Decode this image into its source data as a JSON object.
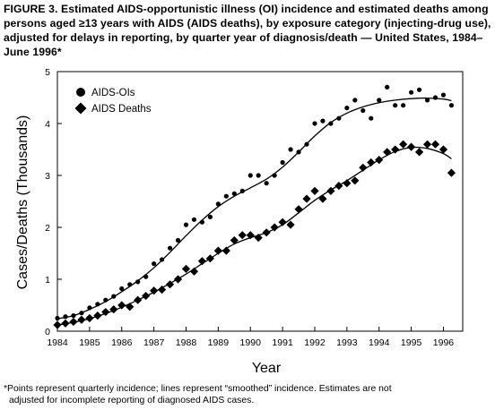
{
  "title": "FIGURE 3. Estimated AIDS-opportunistic illness (OI) incidence and estimated deaths among persons aged ≥13 years with AIDS (AIDS deaths), by exposure category (injecting-drug use), adjusted for delays in reporting, by quarter year of diagnosis/death — United States, 1984–June 1996*",
  "footnote": {
    "line1": "*Points represent quarterly incidence; lines represent “smoothed” incidence. Estimates are not",
    "line2": "adjusted for incomplete reporting of diagnosed AIDS cases."
  },
  "chart_data": {
    "type": "scatter",
    "xlabel": "Year",
    "ylabel": "Cases/Deaths (Thousands)",
    "xlim": [
      1984,
      1996.6
    ],
    "ylim": [
      0,
      5
    ],
    "x_ticks": [
      1984,
      1985,
      1986,
      1987,
      1988,
      1989,
      1990,
      1991,
      1992,
      1993,
      1994,
      1995,
      1996
    ],
    "y_ticks": [
      0,
      1,
      2,
      3,
      4,
      5
    ],
    "grid": false,
    "legend_position": "top-left",
    "series": [
      {
        "name": "AIDS-OIs",
        "marker": "circle",
        "color": "#000000",
        "x": [
          1984.0,
          1984.25,
          1984.5,
          1984.75,
          1985.0,
          1985.25,
          1985.5,
          1985.75,
          1986.0,
          1986.25,
          1986.5,
          1986.75,
          1987.0,
          1987.25,
          1987.5,
          1987.75,
          1988.0,
          1988.25,
          1988.5,
          1988.75,
          1989.0,
          1989.25,
          1989.5,
          1989.75,
          1990.0,
          1990.25,
          1990.5,
          1990.75,
          1991.0,
          1991.25,
          1991.5,
          1991.75,
          1992.0,
          1992.25,
          1992.5,
          1992.75,
          1993.0,
          1993.25,
          1993.5,
          1993.75,
          1994.0,
          1994.25,
          1994.5,
          1994.75,
          1995.0,
          1995.25,
          1995.5,
          1995.75,
          1996.0,
          1996.25
        ],
        "values": [
          0.25,
          0.28,
          0.3,
          0.35,
          0.45,
          0.52,
          0.6,
          0.67,
          0.82,
          0.9,
          0.95,
          1.05,
          1.3,
          1.38,
          1.6,
          1.75,
          2.05,
          2.15,
          2.1,
          2.2,
          2.45,
          2.6,
          2.65,
          2.7,
          3.0,
          3.0,
          2.85,
          3.0,
          3.25,
          3.5,
          3.45,
          3.6,
          4.0,
          4.05,
          4.0,
          4.1,
          4.3,
          4.45,
          4.25,
          4.1,
          4.45,
          4.7,
          4.35,
          4.35,
          4.6,
          4.65,
          4.45,
          4.5,
          4.55,
          4.35
        ],
        "smoothed": [
          [
            1984.0,
            0.24
          ],
          [
            1984.5,
            0.3
          ],
          [
            1985.0,
            0.42
          ],
          [
            1985.5,
            0.57
          ],
          [
            1986.0,
            0.76
          ],
          [
            1986.5,
            0.97
          ],
          [
            1987.0,
            1.22
          ],
          [
            1987.5,
            1.52
          ],
          [
            1988.0,
            1.84
          ],
          [
            1988.5,
            2.14
          ],
          [
            1989.0,
            2.4
          ],
          [
            1989.5,
            2.6
          ],
          [
            1990.0,
            2.76
          ],
          [
            1990.5,
            2.93
          ],
          [
            1991.0,
            3.16
          ],
          [
            1991.5,
            3.45
          ],
          [
            1992.0,
            3.76
          ],
          [
            1992.5,
            4.02
          ],
          [
            1993.0,
            4.2
          ],
          [
            1993.5,
            4.32
          ],
          [
            1994.0,
            4.4
          ],
          [
            1994.5,
            4.45
          ],
          [
            1995.0,
            4.48
          ],
          [
            1995.5,
            4.49
          ],
          [
            1996.0,
            4.47
          ],
          [
            1996.25,
            4.44
          ]
        ]
      },
      {
        "name": "AIDS Deaths",
        "marker": "diamond",
        "color": "#000000",
        "x": [
          1984.0,
          1984.25,
          1984.5,
          1984.75,
          1985.0,
          1985.25,
          1985.5,
          1985.75,
          1986.0,
          1986.25,
          1986.5,
          1986.75,
          1987.0,
          1987.25,
          1987.5,
          1987.75,
          1988.0,
          1988.25,
          1988.5,
          1988.75,
          1989.0,
          1989.25,
          1989.5,
          1989.75,
          1990.0,
          1990.25,
          1990.5,
          1990.75,
          1991.0,
          1991.25,
          1991.5,
          1991.75,
          1992.0,
          1992.25,
          1992.5,
          1992.75,
          1993.0,
          1993.25,
          1993.5,
          1993.75,
          1994.0,
          1994.25,
          1994.5,
          1994.75,
          1995.0,
          1995.25,
          1995.5,
          1995.75,
          1996.0,
          1996.25
        ],
        "values": [
          0.12,
          0.15,
          0.18,
          0.22,
          0.25,
          0.3,
          0.37,
          0.42,
          0.5,
          0.47,
          0.6,
          0.68,
          0.78,
          0.8,
          0.9,
          1.0,
          1.2,
          1.15,
          1.35,
          1.4,
          1.55,
          1.55,
          1.75,
          1.85,
          1.85,
          1.8,
          1.9,
          2.0,
          2.1,
          2.05,
          2.35,
          2.55,
          2.7,
          2.55,
          2.7,
          2.8,
          2.85,
          2.9,
          3.15,
          3.25,
          3.3,
          3.45,
          3.5,
          3.6,
          3.55,
          3.45,
          3.6,
          3.6,
          3.5,
          3.05
        ],
        "smoothed": [
          [
            1984.0,
            0.12
          ],
          [
            1984.5,
            0.17
          ],
          [
            1985.0,
            0.24
          ],
          [
            1985.5,
            0.34
          ],
          [
            1986.0,
            0.46
          ],
          [
            1986.5,
            0.6
          ],
          [
            1987.0,
            0.75
          ],
          [
            1987.5,
            0.92
          ],
          [
            1988.0,
            1.1
          ],
          [
            1988.5,
            1.3
          ],
          [
            1989.0,
            1.5
          ],
          [
            1989.5,
            1.68
          ],
          [
            1990.0,
            1.8
          ],
          [
            1990.5,
            1.9
          ],
          [
            1991.0,
            2.05
          ],
          [
            1991.5,
            2.28
          ],
          [
            1992.0,
            2.52
          ],
          [
            1992.5,
            2.72
          ],
          [
            1993.0,
            2.9
          ],
          [
            1993.5,
            3.1
          ],
          [
            1994.0,
            3.3
          ],
          [
            1994.5,
            3.46
          ],
          [
            1995.0,
            3.54
          ],
          [
            1995.5,
            3.52
          ],
          [
            1996.0,
            3.42
          ],
          [
            1996.25,
            3.32
          ]
        ]
      }
    ]
  }
}
